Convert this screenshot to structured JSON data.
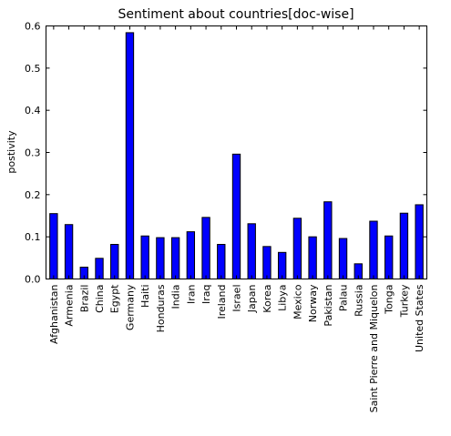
{
  "chart_data": {
    "type": "bar",
    "title": "Sentiment about countries[doc-wise]",
    "xlabel": "",
    "ylabel": "postivity",
    "ylim": [
      0,
      0.6
    ],
    "yticks": [
      0.0,
      0.1,
      0.2,
      0.3,
      0.4,
      0.5,
      0.6
    ],
    "ytick_labels": [
      "0.0",
      "0.1",
      "0.2",
      "0.3",
      "0.4",
      "0.5",
      "0.6"
    ],
    "grid": false,
    "legend": "none",
    "bar_color": "#0000ff",
    "categories": [
      "Afghanistan",
      "Armenia",
      "Brazil",
      "China",
      "Egypt",
      "Germany",
      "Haiti",
      "Honduras",
      "India",
      "Iran",
      "Iraq",
      "Ireland",
      "Israel",
      "Japan",
      "Korea",
      "Libya",
      "Mexico",
      "Norway",
      "Pakistan",
      "Palau",
      "Russia",
      "Saint Pierre and Miquelon",
      "Tonga",
      "Turkey",
      "United States"
    ],
    "values": [
      0.155,
      0.129,
      0.028,
      0.049,
      0.082,
      0.584,
      0.102,
      0.098,
      0.098,
      0.112,
      0.146,
      0.082,
      0.296,
      0.131,
      0.077,
      0.063,
      0.144,
      0.1,
      0.183,
      0.096,
      0.036,
      0.137,
      0.102,
      0.156,
      0.176
    ]
  }
}
